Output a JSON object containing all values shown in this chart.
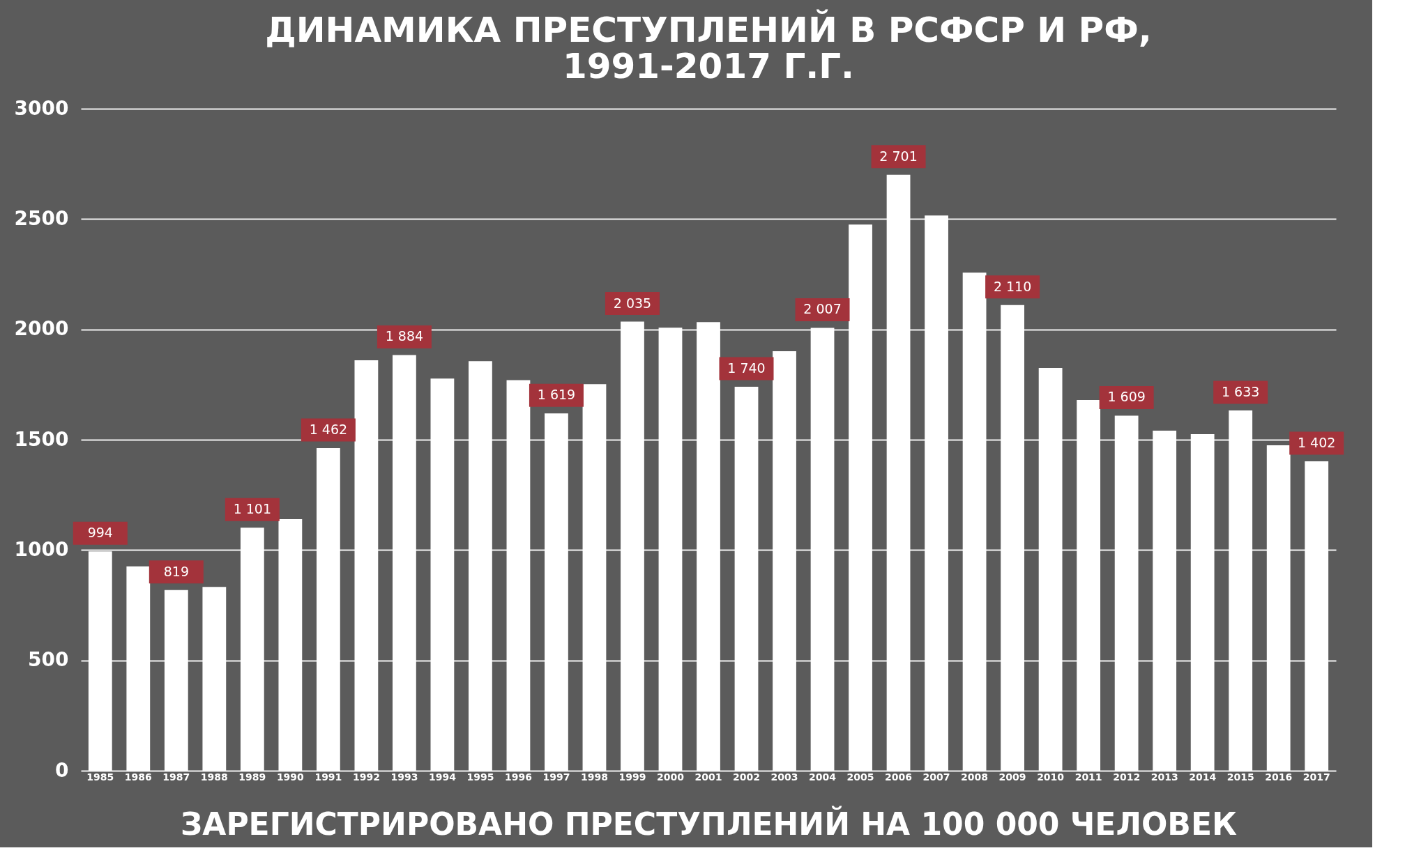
{
  "chart_data": {
    "type": "bar",
    "title": [
      "ДИНАМИКА ПРЕСТУПЛЕНИЙ В РСФСР И РФ,",
      "1991-2017 Г.Г."
    ],
    "xlabel": "ЗАРЕГИСТРИРОВАНО ПРЕСТУПЛЕНИЙ НА 100 000 ЧЕЛОВЕК",
    "categories": [
      "1985",
      "1986",
      "1987",
      "1988",
      "1989",
      "1990",
      "1991",
      "1992",
      "1993",
      "1994",
      "1995",
      "1996",
      "1997",
      "1998",
      "1999",
      "2000",
      "2001",
      "2002",
      "2003",
      "2004",
      "2005",
      "2006",
      "2007",
      "2008",
      "2009",
      "2010",
      "2011",
      "2012",
      "2013",
      "2014",
      "2015",
      "2016",
      "2017"
    ],
    "values": [
      994,
      926,
      819,
      833,
      1101,
      1140,
      1462,
      1860,
      1884,
      1777,
      1856,
      1770,
      1619,
      1752,
      2035,
      2008,
      2033,
      1740,
      1901,
      2007,
      2475,
      2701,
      2516,
      2257,
      2110,
      1825,
      1680,
      1609,
      1541,
      1525,
      1633,
      1475,
      1402
    ],
    "value_labels": [
      "994",
      null,
      "819",
      null,
      "1 101",
      null,
      "1 462",
      null,
      "1 884",
      null,
      null,
      null,
      "1 619",
      null,
      "2 035",
      null,
      null,
      "1 740",
      null,
      "2 007",
      null,
      "2 701",
      null,
      null,
      "2 110",
      null,
      null,
      "1 609",
      null,
      null,
      "1 633",
      null,
      "1 402"
    ],
    "color": "#ffffff",
    "ylim": [
      0,
      3000
    ],
    "yticks": [
      0,
      500,
      1000,
      1500,
      2000,
      2500,
      3000
    ],
    "grid": "y"
  }
}
